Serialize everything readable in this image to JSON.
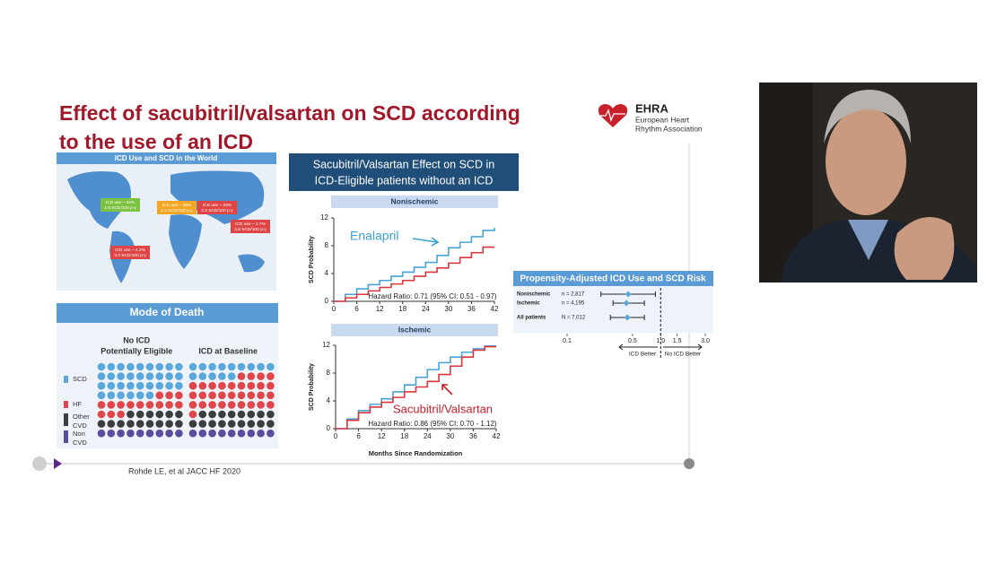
{
  "slide": {
    "title_lines": [
      "Effect of sacubitril/valsartan on SCD according",
      "to the use of an ICD"
    ],
    "logo": {
      "name": "EHRA",
      "lines": [
        "European Heart",
        "Rhythm Association"
      ]
    },
    "map_panel": {
      "title": "ICD Use and SCD in the World",
      "labels": [
        {
          "lines": [
            "ICD use ~ 34%",
            "1.6 SCD/100 p-y"
          ],
          "color": "#7dc242"
        },
        {
          "lines": [
            "ICD use ~ 39%",
            "2.2 SCD/100 p-y"
          ],
          "color": "#f5a623"
        },
        {
          "lines": [
            "ICD use ~ 29%",
            "2.2 SCD/100 p-y"
          ],
          "color": "#e04545"
        },
        {
          "lines": [
            "ICD use ~ 1.7%",
            "4.5 SCD/100 p-y"
          ],
          "color": "#e04545"
        },
        {
          "lines": [
            "ICD use ~ 4.2%",
            "3.3 SCD/100 p-y"
          ],
          "color": "#e04545"
        }
      ]
    },
    "death_panel": {
      "title": "Mode of Death",
      "categories": [
        {
          "name_lines": [
            "SCD"
          ],
          "color": "#5aa7dc"
        },
        {
          "name_lines": [
            "HF"
          ],
          "color": "#e0454a"
        },
        {
          "name_lines": [
            "Other",
            "CVD"
          ],
          "color": "#3d3d3d"
        },
        {
          "name_lines": [
            "Non",
            "CVD"
          ],
          "color": "#5b4d9e"
        }
      ],
      "groups": [
        {
          "name_lines": [
            "No ICD",
            "Potentially Eligible"
          ],
          "counts": [
            33,
            15,
            15,
            9
          ]
        },
        {
          "name_lines": [
            "ICD at Baseline"
          ],
          "counts": [
            14,
            32,
            17,
            9
          ]
        }
      ]
    },
    "effect_panel": {
      "title_lines": [
        "Sacubitril/Valsartan Effect on SCD in",
        "ICD-Eligible patients without an ICD"
      ],
      "xlabel": "Months Since Randomization",
      "ylabel": "SCD Probability",
      "xlim": [
        0,
        42
      ],
      "ylim": [
        0,
        12
      ],
      "xticks": [
        0,
        6,
        12,
        18,
        24,
        30,
        36,
        42
      ],
      "yticks": [
        0,
        4,
        8,
        12
      ],
      "x": [
        0,
        3,
        6,
        9,
        12,
        15,
        18,
        21,
        24,
        27,
        30,
        33,
        36,
        39,
        42
      ],
      "panels": [
        {
          "title": "Nonischemic",
          "hazard": "Hazard Ratio: 0.71 (95% CI: 0.51 - 0.97)",
          "annotation": "Enalapril",
          "annotation_color": "#3aa0d0",
          "series": [
            {
              "color": "#4aa3d6",
              "values": [
                0,
                1,
                1.8,
                2.4,
                3,
                3.6,
                4.2,
                4.9,
                5.6,
                6.6,
                7.7,
                8.5,
                9.3,
                10.2,
                10.6
              ]
            },
            {
              "color": "#d9373d",
              "values": [
                0,
                0.5,
                1,
                1.5,
                2,
                2.5,
                3,
                3.6,
                4.2,
                4.8,
                5.5,
                6.3,
                7,
                7.8,
                7.8
              ]
            }
          ]
        },
        {
          "title": "Ischemic",
          "hazard": "Hazard Ratio: 0.86 (95% CI: 0.70 - 1.12)",
          "annotation": "Sacubitril/Valsartan",
          "annotation_color": "#c8202a",
          "series": [
            {
              "color": "#4aa3d6",
              "values": [
                0,
                1.4,
                2.6,
                3.5,
                4.3,
                5.3,
                6.3,
                7.4,
                8.5,
                9.5,
                10.3,
                11,
                11.5,
                11.9,
                11.9
              ]
            },
            {
              "color": "#d9373d",
              "values": [
                0,
                1.2,
                2.3,
                3.1,
                3.8,
                4.5,
                5.3,
                6,
                6.8,
                7.8,
                9,
                10.3,
                11.3,
                11.8,
                11.8
              ]
            }
          ]
        }
      ]
    },
    "propensity": {
      "title": "Propensity-Adjusted ICD Use and SCD Risk",
      "log_scale": true,
      "xlim": [
        0.1,
        3
      ],
      "xticks": [
        0.1,
        0.5,
        {
          "value": 1,
          "label": "1.0"
        },
        1.5,
        {
          "value": 3,
          "label": "3.0"
        }
      ],
      "left_label": "ICD Better",
      "right_label": "No ICD Better",
      "point_color": "#5aa7dc",
      "rows": [
        {
          "label": "Nonischemic",
          "n": "n = 2,817",
          "hr": 0.45,
          "lo": 0.23,
          "hi": 0.88
        },
        {
          "label": "Ischemic",
          "n": "n = 4,195",
          "hr": 0.43,
          "lo": 0.31,
          "hi": 0.67
        },
        {
          "label": "All patients",
          "n": "N = 7,012",
          "hr": 0.44,
          "lo": 0.29,
          "hi": 0.67
        }
      ]
    },
    "citation": "Rohde LE, et al JACC HF 2020"
  }
}
